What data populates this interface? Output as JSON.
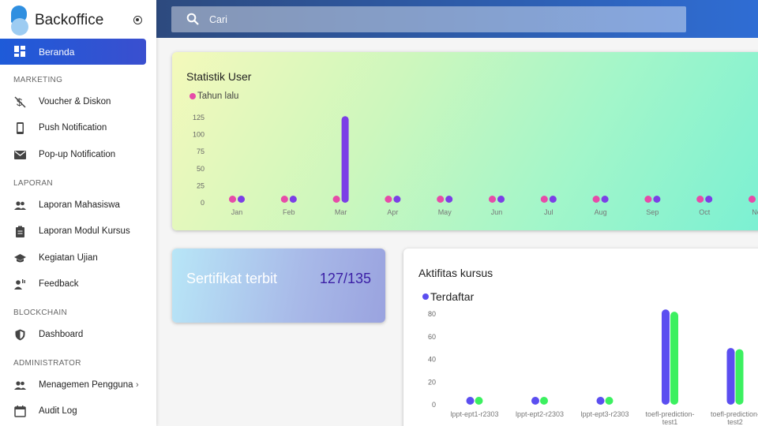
{
  "brand": {
    "name": "Backoffice"
  },
  "search": {
    "placeholder": "Cari"
  },
  "nav": {
    "active": {
      "label": "Beranda",
      "icon": "dashboard-icon"
    },
    "sections": [
      {
        "title": "MARKETING",
        "items": [
          {
            "label": "Voucher & Diskon",
            "icon": "money-off-icon"
          },
          {
            "label": "Push Notification",
            "icon": "phone-icon"
          },
          {
            "label": "Pop-up Notification",
            "icon": "mail-icon"
          }
        ]
      },
      {
        "title": "LAPORAN",
        "items": [
          {
            "label": "Laporan Mahasiswa",
            "icon": "people-icon"
          },
          {
            "label": "Laporan Modul Kursus",
            "icon": "clipboard-icon"
          },
          {
            "label": "Kegiatan Ujian",
            "icon": "school-icon"
          },
          {
            "label": "Feedback",
            "icon": "feedback-icon"
          }
        ]
      },
      {
        "title": "BLOCKCHAIN",
        "items": [
          {
            "label": "Dashboard",
            "icon": "shield-icon"
          }
        ]
      },
      {
        "title": "ADMINISTRATOR",
        "items": [
          {
            "label": "Menagemen Pengguna",
            "icon": "people-icon",
            "has_submenu": true
          },
          {
            "label": "Audit Log",
            "icon": "calendar-icon"
          }
        ]
      }
    ]
  },
  "stat_card": {
    "title": "Statistik User",
    "legend": "Tahun lalu",
    "colors": {
      "series1": "#e64ba8",
      "series2": "#7b3fe6"
    }
  },
  "cert_card": {
    "label": "Sertifikat terbit",
    "value": "127/135"
  },
  "activity_card": {
    "title": "Aktifitas kursus",
    "legend": "Terdaftar",
    "colors": {
      "series1": "#5b4ef0",
      "series2": "#3cf060"
    }
  },
  "chart_data": [
    {
      "type": "bar",
      "title": "Statistik User",
      "categories": [
        "Jan",
        "Feb",
        "Mar",
        "Apr",
        "May",
        "Jun",
        "Jul",
        "Aug",
        "Sep",
        "Oct",
        "No"
      ],
      "yticks": [
        0,
        25,
        50,
        75,
        100,
        125
      ],
      "ylim": [
        0,
        125
      ],
      "series": [
        {
          "name": "Tahun lalu",
          "color": "#e64ba8",
          "values": [
            0,
            0,
            0,
            0,
            0,
            0,
            0,
            0,
            0,
            0,
            0
          ]
        },
        {
          "color": "#7b3fe6",
          "values": [
            0,
            0,
            127,
            0,
            0,
            0,
            0,
            0,
            0,
            0,
            null
          ]
        }
      ],
      "legend": "top-left"
    },
    {
      "type": "bar",
      "title": "Aktifitas kursus",
      "categories": [
        "lppt-ept1-r2303",
        "lppt-ept2-r2303",
        "lppt-ept3-r2303",
        "toefl-prediction-test1",
        "toefl-prediction-test2"
      ],
      "yticks": [
        0,
        20,
        40,
        60,
        80
      ],
      "ylim": [
        0,
        80
      ],
      "series": [
        {
          "name": "Terdaftar",
          "color": "#5b4ef0",
          "values": [
            2,
            0,
            0,
            84,
            50
          ]
        },
        {
          "color": "#3cf060",
          "values": [
            1,
            0,
            0,
            82,
            49
          ]
        }
      ],
      "legend": "top-left"
    }
  ]
}
